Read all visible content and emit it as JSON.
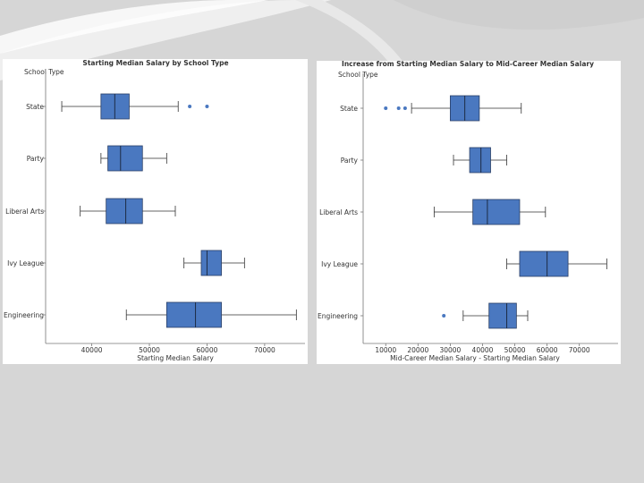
{
  "chart_data": [
    {
      "type": "boxplot",
      "orientation": "horizontal",
      "title": "Starting Median Salary by School Type",
      "ylabel": "School Type",
      "xlabel": "Starting Median Salary",
      "categories": [
        "State",
        "Party",
        "Liberal Arts",
        "Ivy League",
        "Engineering"
      ],
      "xlim": [
        32000,
        77000
      ],
      "xticks": [
        40000,
        50000,
        60000,
        70000
      ],
      "tick_labels": [
        "40000",
        "50000",
        "60000",
        "70000"
      ],
      "boxes": [
        {
          "category": "State",
          "min": 34800,
          "q1": 41600,
          "median": 44000,
          "q3": 46500,
          "max": 55000,
          "outliers": [
            57000,
            60000
          ]
        },
        {
          "category": "Party",
          "min": 41600,
          "q1": 42800,
          "median": 45000,
          "q3": 48800,
          "max": 53000,
          "outliers": []
        },
        {
          "category": "Liberal Arts",
          "min": 38000,
          "q1": 42500,
          "median": 45900,
          "q3": 48800,
          "max": 54500,
          "outliers": []
        },
        {
          "category": "Ivy League",
          "min": 56000,
          "q1": 59000,
          "median": 60000,
          "q3": 62500,
          "max": 66500,
          "outliers": []
        },
        {
          "category": "Engineering",
          "min": 46000,
          "q1": 53000,
          "median": 58000,
          "q3": 62500,
          "max": 75500,
          "outliers": []
        }
      ],
      "box_color": "#4a78c0",
      "grid": false
    },
    {
      "type": "boxplot",
      "orientation": "horizontal",
      "title": "Increase from Starting Median Salary to Mid-Career Median Salary",
      "ylabel": "School Type",
      "xlabel": "Mid-Career Median Salary - Starting Median Salary",
      "categories": [
        "State",
        "Party",
        "Liberal Arts",
        "Ivy League",
        "Engineering"
      ],
      "xlim": [
        3000,
        82000
      ],
      "xticks": [
        10000,
        20000,
        30000,
        40000,
        50000,
        60000,
        70000
      ],
      "tick_labels": [
        "10000",
        "20000",
        "30000",
        "40000",
        "50000",
        "60000",
        "70000"
      ],
      "boxes": [
        {
          "category": "State",
          "min": 18000,
          "q1": 30000,
          "median": 34500,
          "q3": 39000,
          "max": 52000,
          "outliers": [
            10000,
            14000,
            16000
          ]
        },
        {
          "category": "Party",
          "min": 31000,
          "q1": 36000,
          "median": 39500,
          "q3": 42500,
          "max": 47500,
          "outliers": []
        },
        {
          "category": "Liberal Arts",
          "min": 25000,
          "q1": 37000,
          "median": 41500,
          "q3": 51500,
          "max": 59500,
          "outliers": []
        },
        {
          "category": "Ivy League",
          "min": 47500,
          "q1": 51500,
          "median": 60000,
          "q3": 66500,
          "max": 78500,
          "outliers": []
        },
        {
          "category": "Engineering",
          "min": 34000,
          "q1": 42000,
          "median": 47500,
          "q3": 50500,
          "max": 54000,
          "outliers": [
            28000
          ]
        }
      ],
      "box_color": "#4a78c0",
      "grid": false
    }
  ]
}
